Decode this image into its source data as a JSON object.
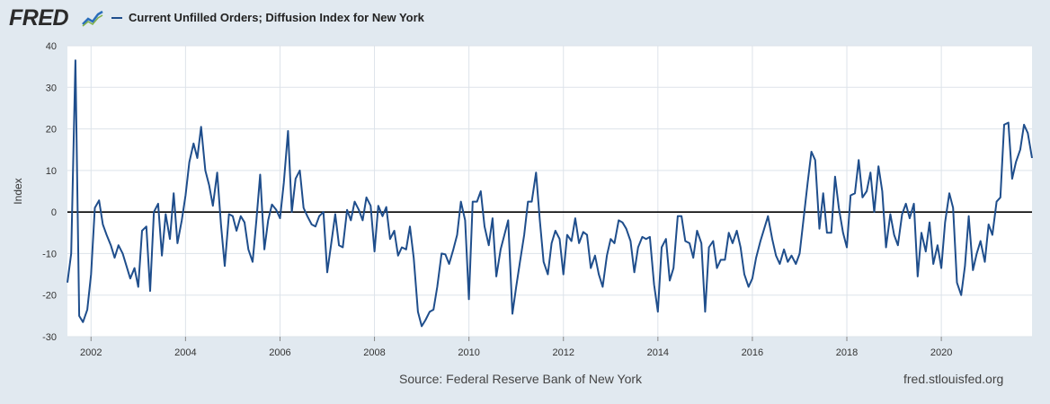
{
  "header": {
    "logo_text": "FRED",
    "logo_icon": "chart-line-icon",
    "legend_label": "Current Unfilled Orders; Diffusion Index for New York"
  },
  "footer": {
    "source": "Source: Federal Reserve Bank of New York",
    "url": "fred.stlouisfed.org"
  },
  "colors": {
    "series": "#1f4e8c",
    "background": "#e1e9f0",
    "plot": "#ffffff",
    "grid": "#dde3ea",
    "zero_line": "#000000"
  },
  "chart_data": {
    "type": "line",
    "title": "Current Unfilled Orders; Diffusion Index for New York",
    "xlabel": "",
    "ylabel": "Index",
    "xlim": [
      2001.5,
      2021.92
    ],
    "ylim": [
      -30,
      40
    ],
    "yticks": [
      40,
      30,
      20,
      10,
      0,
      -10,
      -20,
      -30
    ],
    "xticks": [
      2002,
      2004,
      2006,
      2008,
      2010,
      2012,
      2014,
      2016,
      2018,
      2020
    ],
    "grid": true,
    "zero_line": 0,
    "series": [
      {
        "name": "Current Unfilled Orders; Diffusion Index for New York",
        "points": [
          [
            2001.5,
            -17
          ],
          [
            2001.58,
            -10
          ],
          [
            2001.67,
            36.5
          ],
          [
            2001.75,
            -25
          ],
          [
            2001.83,
            -26.5
          ],
          [
            2001.92,
            -23.5
          ],
          [
            2002.0,
            -15
          ],
          [
            2002.08,
            1
          ],
          [
            2002.17,
            2.8
          ],
          [
            2002.25,
            -3
          ],
          [
            2002.33,
            -5.5
          ],
          [
            2002.42,
            -8
          ],
          [
            2002.5,
            -11
          ],
          [
            2002.58,
            -8
          ],
          [
            2002.67,
            -10
          ],
          [
            2002.75,
            -13
          ],
          [
            2002.83,
            -16
          ],
          [
            2002.92,
            -13.5
          ],
          [
            2003.0,
            -18
          ],
          [
            2003.08,
            -4.5
          ],
          [
            2003.17,
            -3.5
          ],
          [
            2003.25,
            -19
          ],
          [
            2003.33,
            0
          ],
          [
            2003.42,
            2
          ],
          [
            2003.5,
            -10.5
          ],
          [
            2003.58,
            -0.5
          ],
          [
            2003.67,
            -6.5
          ],
          [
            2003.75,
            4.5
          ],
          [
            2003.83,
            -7.5
          ],
          [
            2003.92,
            -2
          ],
          [
            2004.0,
            4
          ],
          [
            2004.08,
            12
          ],
          [
            2004.17,
            16.5
          ],
          [
            2004.25,
            13
          ],
          [
            2004.33,
            20.5
          ],
          [
            2004.42,
            10
          ],
          [
            2004.5,
            6.5
          ],
          [
            2004.58,
            1.5
          ],
          [
            2004.67,
            9.5
          ],
          [
            2004.75,
            -3
          ],
          [
            2004.83,
            -13
          ],
          [
            2004.92,
            -0.5
          ],
          [
            2005.0,
            -1
          ],
          [
            2005.08,
            -4.5
          ],
          [
            2005.17,
            -1
          ],
          [
            2005.25,
            -2.5
          ],
          [
            2005.33,
            -9
          ],
          [
            2005.42,
            -12
          ],
          [
            2005.5,
            -2
          ],
          [
            2005.58,
            9
          ],
          [
            2005.67,
            -9
          ],
          [
            2005.75,
            -2
          ],
          [
            2005.83,
            1.8
          ],
          [
            2005.92,
            0.5
          ],
          [
            2006.0,
            -1.5
          ],
          [
            2006.08,
            7
          ],
          [
            2006.17,
            19.5
          ],
          [
            2006.25,
            0
          ],
          [
            2006.33,
            8
          ],
          [
            2006.42,
            10
          ],
          [
            2006.5,
            1
          ],
          [
            2006.58,
            -1
          ],
          [
            2006.67,
            -3
          ],
          [
            2006.75,
            -3.5
          ],
          [
            2006.83,
            -1
          ],
          [
            2006.92,
            0
          ],
          [
            2007.0,
            -14.5
          ],
          [
            2007.08,
            -8
          ],
          [
            2007.17,
            -0.5
          ],
          [
            2007.25,
            -8
          ],
          [
            2007.33,
            -8.5
          ],
          [
            2007.42,
            0.5
          ],
          [
            2007.5,
            -2
          ],
          [
            2007.58,
            2.5
          ],
          [
            2007.67,
            0.5
          ],
          [
            2007.75,
            -2
          ],
          [
            2007.83,
            3.5
          ],
          [
            2007.92,
            1.5
          ],
          [
            2008.0,
            -9.5
          ],
          [
            2008.08,
            1.5
          ],
          [
            2008.17,
            -1
          ],
          [
            2008.25,
            1.2
          ],
          [
            2008.33,
            -6.5
          ],
          [
            2008.42,
            -4.5
          ],
          [
            2008.5,
            -10.5
          ],
          [
            2008.58,
            -8.5
          ],
          [
            2008.67,
            -9
          ],
          [
            2008.75,
            -3.5
          ],
          [
            2008.83,
            -11
          ],
          [
            2008.92,
            -24
          ],
          [
            2009.0,
            -27.5
          ],
          [
            2009.08,
            -26
          ],
          [
            2009.17,
            -24
          ],
          [
            2009.25,
            -23.5
          ],
          [
            2009.33,
            -18
          ],
          [
            2009.42,
            -10
          ],
          [
            2009.5,
            -10.2
          ],
          [
            2009.58,
            -12.5
          ],
          [
            2009.67,
            -9
          ],
          [
            2009.75,
            -5.5
          ],
          [
            2009.83,
            2.5
          ],
          [
            2009.92,
            -2
          ],
          [
            2010.0,
            -21
          ],
          [
            2010.08,
            2.5
          ],
          [
            2010.17,
            2.5
          ],
          [
            2010.25,
            5
          ],
          [
            2010.33,
            -3.5
          ],
          [
            2010.42,
            -8
          ],
          [
            2010.5,
            -1.5
          ],
          [
            2010.58,
            -15.5
          ],
          [
            2010.67,
            -9
          ],
          [
            2010.75,
            -5.5
          ],
          [
            2010.83,
            -2
          ],
          [
            2010.92,
            -24.5
          ],
          [
            2011.0,
            -18
          ],
          [
            2011.08,
            -12
          ],
          [
            2011.17,
            -5.5
          ],
          [
            2011.25,
            2.5
          ],
          [
            2011.33,
            2.5
          ],
          [
            2011.42,
            9.5
          ],
          [
            2011.5,
            -2
          ],
          [
            2011.58,
            -12
          ],
          [
            2011.67,
            -15
          ],
          [
            2011.75,
            -7.5
          ],
          [
            2011.83,
            -4.5
          ],
          [
            2011.92,
            -6.5
          ],
          [
            2012.0,
            -15
          ],
          [
            2012.08,
            -5.5
          ],
          [
            2012.17,
            -7
          ],
          [
            2012.25,
            -1.5
          ],
          [
            2012.33,
            -7.5
          ],
          [
            2012.42,
            -4.8
          ],
          [
            2012.5,
            -5.5
          ],
          [
            2012.58,
            -13.5
          ],
          [
            2012.67,
            -10.5
          ],
          [
            2012.75,
            -15
          ],
          [
            2012.83,
            -18
          ],
          [
            2012.92,
            -10.5
          ],
          [
            2013.0,
            -6.5
          ],
          [
            2013.08,
            -7.5
          ],
          [
            2013.17,
            -2
          ],
          [
            2013.25,
            -2.5
          ],
          [
            2013.33,
            -4
          ],
          [
            2013.42,
            -7
          ],
          [
            2013.5,
            -14.5
          ],
          [
            2013.58,
            -8.5
          ],
          [
            2013.67,
            -6
          ],
          [
            2013.75,
            -6.5
          ],
          [
            2013.83,
            -6
          ],
          [
            2013.92,
            -17.5
          ],
          [
            2014.0,
            -24
          ],
          [
            2014.08,
            -8.5
          ],
          [
            2014.17,
            -6.5
          ],
          [
            2014.25,
            -16.5
          ],
          [
            2014.33,
            -13.5
          ],
          [
            2014.42,
            -1
          ],
          [
            2014.5,
            -1
          ],
          [
            2014.58,
            -7
          ],
          [
            2014.67,
            -7.5
          ],
          [
            2014.75,
            -11
          ],
          [
            2014.83,
            -4.5
          ],
          [
            2014.92,
            -7.5
          ],
          [
            2015.0,
            -24
          ],
          [
            2015.08,
            -8.5
          ],
          [
            2015.17,
            -7
          ],
          [
            2015.25,
            -13.5
          ],
          [
            2015.33,
            -11.5
          ],
          [
            2015.42,
            -11.5
          ],
          [
            2015.5,
            -5
          ],
          [
            2015.58,
            -7.5
          ],
          [
            2015.67,
            -4.5
          ],
          [
            2015.75,
            -8.5
          ],
          [
            2015.83,
            -15
          ],
          [
            2015.92,
            -18
          ],
          [
            2016.0,
            -16
          ],
          [
            2016.08,
            -11
          ],
          [
            2016.17,
            -7
          ],
          [
            2016.25,
            -4
          ],
          [
            2016.33,
            -1
          ],
          [
            2016.42,
            -6.5
          ],
          [
            2016.5,
            -10.5
          ],
          [
            2016.58,
            -12.5
          ],
          [
            2016.67,
            -9
          ],
          [
            2016.75,
            -12
          ],
          [
            2016.83,
            -10.5
          ],
          [
            2016.92,
            -12.5
          ],
          [
            2017.0,
            -10
          ],
          [
            2017.08,
            -2
          ],
          [
            2017.17,
            7
          ],
          [
            2017.25,
            14.5
          ],
          [
            2017.33,
            12.5
          ],
          [
            2017.42,
            -4
          ],
          [
            2017.5,
            4.5
          ],
          [
            2017.58,
            -5
          ],
          [
            2017.67,
            -5
          ],
          [
            2017.75,
            8.5
          ],
          [
            2017.83,
            1
          ],
          [
            2017.92,
            -5
          ],
          [
            2018.0,
            -8.5
          ],
          [
            2018.08,
            4
          ],
          [
            2018.17,
            4.5
          ],
          [
            2018.25,
            12.5
          ],
          [
            2018.33,
            3.5
          ],
          [
            2018.42,
            5
          ],
          [
            2018.5,
            9.5
          ],
          [
            2018.58,
            0
          ],
          [
            2018.67,
            11
          ],
          [
            2018.75,
            5
          ],
          [
            2018.83,
            -8.5
          ],
          [
            2018.92,
            -0.5
          ],
          [
            2019.0,
            -5.5
          ],
          [
            2019.08,
            -8
          ],
          [
            2019.17,
            -0.5
          ],
          [
            2019.25,
            2
          ],
          [
            2019.33,
            -1.5
          ],
          [
            2019.42,
            2
          ],
          [
            2019.5,
            -15.5
          ],
          [
            2019.58,
            -5
          ],
          [
            2019.67,
            -9.5
          ],
          [
            2019.75,
            -2.5
          ],
          [
            2019.83,
            -12.5
          ],
          [
            2019.92,
            -8
          ],
          [
            2020.0,
            -13.5
          ],
          [
            2020.08,
            -2.5
          ],
          [
            2020.17,
            4.5
          ],
          [
            2020.25,
            1
          ],
          [
            2020.33,
            -17
          ],
          [
            2020.42,
            -20
          ],
          [
            2020.5,
            -13
          ],
          [
            2020.58,
            -1
          ],
          [
            2020.67,
            -14
          ],
          [
            2020.75,
            -10
          ],
          [
            2020.83,
            -7
          ],
          [
            2020.92,
            -12
          ],
          [
            2021.0,
            -3
          ],
          [
            2021.08,
            -5.5
          ],
          [
            2021.17,
            2.5
          ],
          [
            2021.25,
            3.5
          ],
          [
            2021.33,
            21
          ],
          [
            2021.42,
            21.5
          ],
          [
            2021.5,
            8
          ],
          [
            2021.58,
            12
          ],
          [
            2021.67,
            15
          ],
          [
            2021.75,
            21
          ],
          [
            2021.83,
            19
          ],
          [
            2021.92,
            13
          ]
        ]
      }
    ]
  }
}
